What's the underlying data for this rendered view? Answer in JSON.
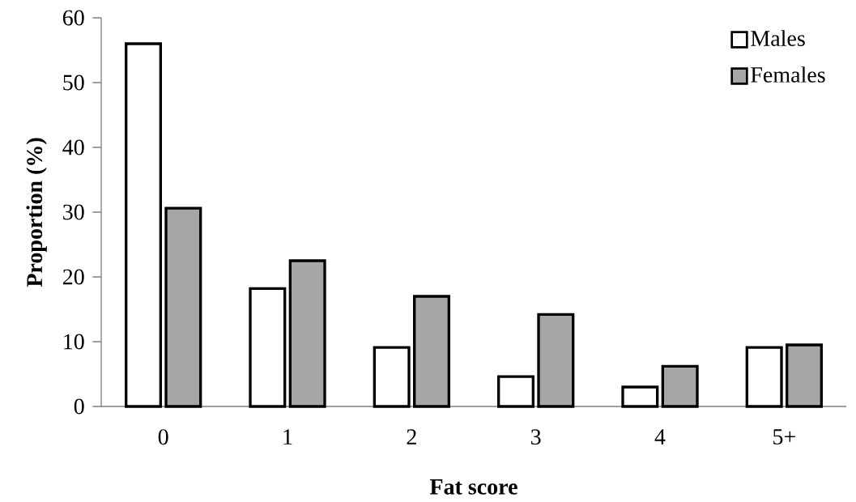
{
  "chart_data": {
    "type": "bar",
    "xlabel": "Fat score",
    "ylabel": "Proportion (%)",
    "categories": [
      "0",
      "1",
      "2",
      "3",
      "4",
      "5+"
    ],
    "series": [
      {
        "name": "Males",
        "color": "#ffffff",
        "values": [
          56.0,
          18.2,
          9.1,
          4.6,
          3.0,
          9.1
        ]
      },
      {
        "name": "Females",
        "color": "#a6a6a6",
        "values": [
          30.6,
          22.5,
          17.0,
          14.2,
          6.2,
          9.5
        ]
      }
    ],
    "ylim": [
      0,
      60
    ],
    "yticks": [
      0,
      10,
      20,
      30,
      40,
      50,
      60
    ],
    "legend": "top right"
  }
}
